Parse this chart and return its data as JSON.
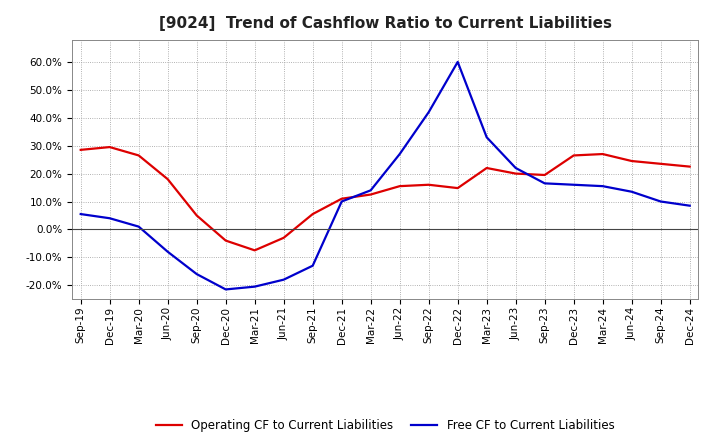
{
  "title": "[9024]  Trend of Cashflow Ratio to Current Liabilities",
  "x_labels": [
    "Sep-19",
    "Dec-19",
    "Mar-20",
    "Jun-20",
    "Sep-20",
    "Dec-20",
    "Mar-21",
    "Jun-21",
    "Sep-21",
    "Dec-21",
    "Mar-22",
    "Jun-22",
    "Sep-22",
    "Dec-22",
    "Mar-23",
    "Jun-23",
    "Sep-23",
    "Dec-23",
    "Mar-24",
    "Jun-24",
    "Sep-24",
    "Dec-24"
  ],
  "operating_cf": [
    0.285,
    0.295,
    0.265,
    0.18,
    0.05,
    -0.04,
    -0.075,
    -0.03,
    0.055,
    0.11,
    0.125,
    0.155,
    0.16,
    0.148,
    0.22,
    0.2,
    0.195,
    0.265,
    0.27,
    0.245,
    0.235,
    0.225
  ],
  "free_cf": [
    0.055,
    0.04,
    0.01,
    -0.08,
    -0.16,
    -0.215,
    -0.205,
    -0.18,
    -0.13,
    0.1,
    0.14,
    0.27,
    0.42,
    0.6,
    0.33,
    0.22,
    0.165,
    0.16,
    0.155,
    0.135,
    0.1,
    0.085
  ],
  "operating_color": "#dd0000",
  "free_color": "#0000cc",
  "ylim": [
    -0.25,
    0.68
  ],
  "yticks": [
    -0.2,
    -0.1,
    0.0,
    0.1,
    0.2,
    0.3,
    0.4,
    0.5,
    0.6
  ],
  "background_color": "#ffffff",
  "plot_bg_color": "#ffffff",
  "grid_color": "#999999",
  "legend_op": "Operating CF to Current Liabilities",
  "legend_free": "Free CF to Current Liabilities",
  "line_width": 1.6,
  "title_fontsize": 11,
  "tick_fontsize": 7.5,
  "legend_fontsize": 8.5
}
